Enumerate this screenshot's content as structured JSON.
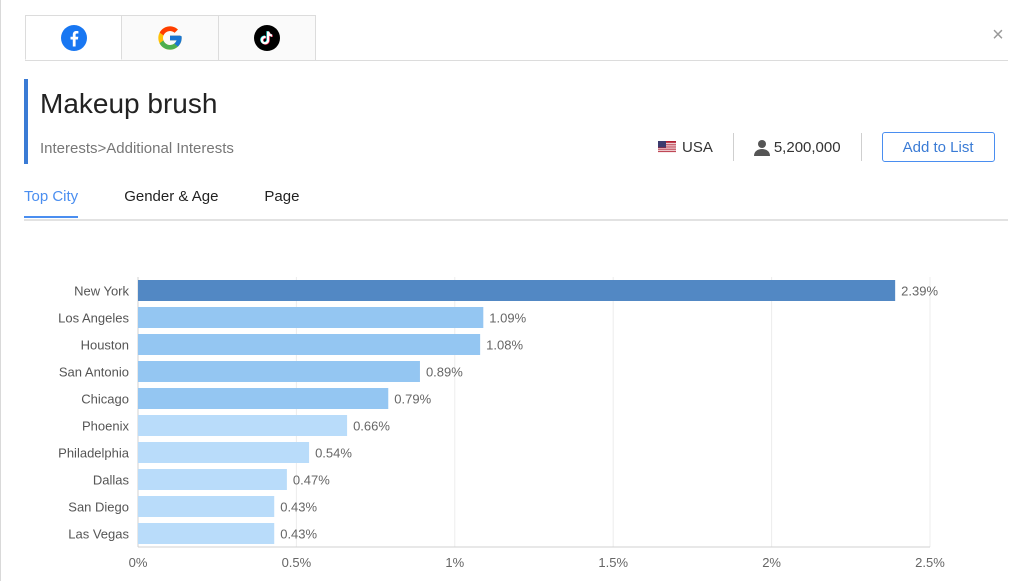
{
  "platform_tabs": [
    {
      "name": "facebook",
      "icon": "facebook-icon",
      "color": "#1877f2",
      "active": true
    },
    {
      "name": "google",
      "icon": "google-icon",
      "active": false
    },
    {
      "name": "tiktok",
      "icon": "tiktok-icon",
      "color": "#000000",
      "active": false
    }
  ],
  "close_icon": "×",
  "title": "Makeup brush",
  "breadcrumb": "Interests>Additional Interests",
  "country": "USA",
  "audience_size": "5,200,000",
  "add_button_label": "Add to List",
  "subtabs": [
    "Top City",
    "Gender & Age",
    "Page"
  ],
  "active_subtab": "Top City",
  "colors": {
    "accent": "#4a8ef0",
    "bar_top": "#5288c4",
    "bar_mid": "#94c6f2",
    "bar_light": "#b9dcfa"
  },
  "chart_data": {
    "type": "bar",
    "orientation": "horizontal",
    "categories": [
      "New York",
      "Los Angeles",
      "Houston",
      "San Antonio",
      "Chicago",
      "Phoenix",
      "Philadelphia",
      "Dallas",
      "San Diego",
      "Las Vegas"
    ],
    "values": [
      2.39,
      1.09,
      1.08,
      0.89,
      0.79,
      0.66,
      0.54,
      0.47,
      0.43,
      0.43
    ],
    "value_labels": [
      "2.39%",
      "1.09%",
      "1.08%",
      "0.89%",
      "0.79%",
      "0.66%",
      "0.54%",
      "0.47%",
      "0.43%",
      "0.43%"
    ],
    "xticks": [
      0,
      0.5,
      1,
      1.5,
      2,
      2.5
    ],
    "xtick_labels": [
      "0%",
      "0.5%",
      "1%",
      "1.5%",
      "2%",
      "2.5%"
    ],
    "xlim": [
      0,
      2.5
    ],
    "grid": "vertical"
  }
}
